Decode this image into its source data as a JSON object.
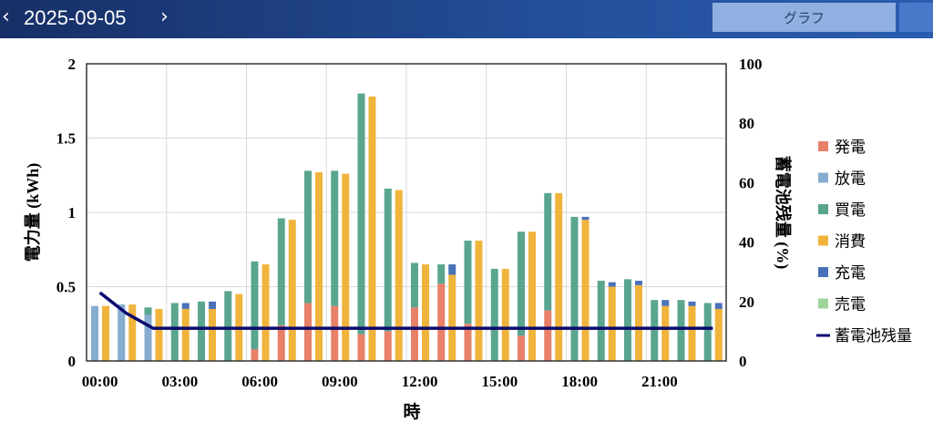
{
  "header": {
    "prev_icon": "chevron-left-icon",
    "date": "2025-09-05",
    "next_icon": "chevron-right-icon",
    "tab_graph": "グラフ"
  },
  "chart_data": {
    "type": "bar",
    "xlabel": "時",
    "ylabel": "電力量 (kWh)",
    "y2label": "蓄電池残量 (%)",
    "ylim": [
      0,
      2
    ],
    "y2lim": [
      0,
      100
    ],
    "yticks": [
      "0",
      "0.5",
      "1",
      "1.5",
      "2"
    ],
    "y2ticks": [
      "0",
      "20",
      "40",
      "60",
      "80",
      "100"
    ],
    "xtick_labels": [
      "00:00",
      "03:00",
      "06:00",
      "09:00",
      "12:00",
      "15:00",
      "18:00",
      "21:00"
    ],
    "grid": true,
    "legend_position": "right",
    "hours": [
      0,
      1,
      2,
      3,
      4,
      5,
      6,
      7,
      8,
      9,
      10,
      11,
      12,
      13,
      14,
      15,
      16,
      17,
      18,
      19,
      20,
      21,
      22,
      23
    ],
    "supply_stack": [
      "発電",
      "放電",
      "買電"
    ],
    "demand_stack": [
      "消費",
      "充電",
      "売電"
    ],
    "series": [
      {
        "name": "発電",
        "color": "#e8806a",
        "values": [
          0,
          0,
          0,
          0,
          0,
          0,
          0.08,
          0.24,
          0.39,
          0.37,
          0.18,
          0.2,
          0.36,
          0.52,
          0.25,
          0,
          0.17,
          0.34,
          0,
          0,
          0,
          0,
          0,
          0
        ]
      },
      {
        "name": "放電",
        "color": "#86acd0",
        "values": [
          0.37,
          0.38,
          0.31,
          0,
          0,
          0,
          0,
          0,
          0,
          0,
          0,
          0,
          0,
          0,
          0,
          0,
          0,
          0,
          0,
          0,
          0,
          0,
          0,
          0
        ]
      },
      {
        "name": "買電",
        "color": "#5aa58f",
        "values": [
          0,
          0,
          0.05,
          0.39,
          0.4,
          0.47,
          0.59,
          0.72,
          0.89,
          0.91,
          1.62,
          0.96,
          0.3,
          0.13,
          0.56,
          0.62,
          0.7,
          0.79,
          0.97,
          0.54,
          0.55,
          0.41,
          0.41,
          0.39
        ]
      },
      {
        "name": "消費",
        "color": "#f0b43c",
        "values": [
          0.37,
          0.38,
          0.35,
          0.35,
          0.35,
          0.45,
          0.65,
          0.95,
          1.27,
          1.26,
          1.78,
          1.15,
          0.65,
          0.58,
          0.81,
          0.62,
          0.87,
          1.13,
          0.95,
          0.5,
          0.51,
          0.37,
          0.37,
          0.35
        ]
      },
      {
        "name": "充電",
        "color": "#4a72b8",
        "values": [
          0,
          0,
          0,
          0.04,
          0.05,
          0,
          0,
          0,
          0,
          0,
          0,
          0,
          0,
          0.07,
          0,
          0,
          0,
          0,
          0.02,
          0.03,
          0.03,
          0.04,
          0.03,
          0.04
        ]
      },
      {
        "name": "売電",
        "color": "#9ed49a",
        "values": [
          0,
          0,
          0,
          0,
          0,
          0,
          0,
          0,
          0,
          0,
          0,
          0,
          0,
          0,
          0,
          0,
          0,
          0,
          0,
          0,
          0,
          0,
          0,
          0
        ]
      }
    ],
    "battery": {
      "name": "蓄電池残量",
      "color": "#0a0a6e",
      "values": [
        23,
        16,
        11,
        11,
        11,
        11,
        11,
        11,
        11,
        11,
        11,
        11,
        11,
        11,
        11,
        11,
        11,
        11,
        11,
        11,
        11,
        11,
        11,
        11
      ]
    }
  }
}
